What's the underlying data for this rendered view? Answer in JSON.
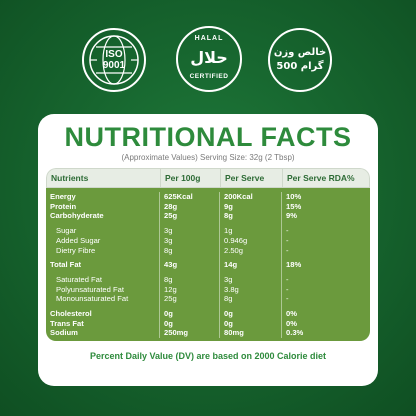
{
  "badges": {
    "iso": {
      "line1": "ISO",
      "line2": "9001"
    },
    "halal": {
      "top": "HALAL",
      "arabic": "حلال",
      "bottom": "CERTIFIED"
    },
    "weight": {
      "arabic": "خالص وزن",
      "value": "500 گرام"
    }
  },
  "title": "NUTRITIONAL FACTS",
  "subtitle": "(Approximate Values) Serving Size: 32g (2 Tbsp)",
  "table": {
    "headers": [
      "Nutrients",
      "Per 100g",
      "Per Serve",
      "Per Serve RDA%"
    ],
    "rows": [
      {
        "name": "Energy",
        "per100": "625Kcal",
        "serve": "200Kcal",
        "rda": "10%",
        "bold": true
      },
      {
        "name": "Protein",
        "per100": "28g",
        "serve": "9g",
        "rda": "15%",
        "bold": true
      },
      {
        "name": "Carbohyderate",
        "per100": "25g",
        "serve": "8g",
        "rda": "9%",
        "bold": true
      },
      {
        "gap": true
      },
      {
        "name": "Sugar",
        "per100": "3g",
        "serve": "1g",
        "rda": "-",
        "sub": true
      },
      {
        "name": "Added Sugar",
        "per100": "3g",
        "serve": "0.946g",
        "rda": "-",
        "sub": true
      },
      {
        "name": "Dietry Fibre",
        "per100": "8g",
        "serve": "2.50g",
        "rda": "-",
        "sub": true
      },
      {
        "gap": true
      },
      {
        "name": "Total Fat",
        "per100": "43g",
        "serve": "14g",
        "rda": "18%",
        "bold": true
      },
      {
        "gap": true
      },
      {
        "name": "Saturated Fat",
        "per100": "8g",
        "serve": "3g",
        "rda": "-",
        "sub": true
      },
      {
        "name": "Polyunsaturated Fat",
        "per100": "12g",
        "serve": "3.8g",
        "rda": "-",
        "sub": true
      },
      {
        "name": "Monounsaturated Fat",
        "per100": "25g",
        "serve": "8g",
        "rda": "-",
        "sub": true
      },
      {
        "gap": true
      },
      {
        "name": "Cholesterol",
        "per100": "0g",
        "serve": "0g",
        "rda": "0%",
        "bold": true
      },
      {
        "name": "Trans Fat",
        "per100": "0g",
        "serve": "0g",
        "rda": "0%",
        "bold": true
      },
      {
        "name": "Sodium",
        "per100": "250mg",
        "serve": "80mg",
        "rda": "0.3%",
        "bold": true
      }
    ]
  },
  "footer": "Percent Daily Value (DV) are based on 2000 Calorie diet",
  "colors": {
    "background": "#17662f",
    "title": "#2e8b3c",
    "table_body": "#6b9a3d",
    "header_bg": "#e7ede4"
  }
}
